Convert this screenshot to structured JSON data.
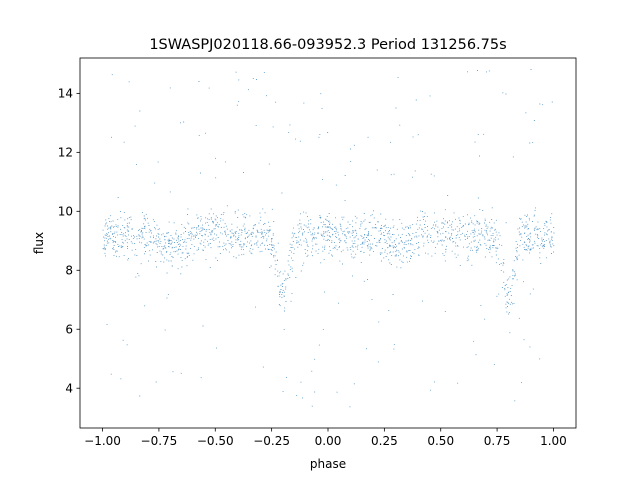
{
  "chart_data": {
    "type": "scatter",
    "title": "1SWASPJ020118.66-093952.3 Period 131256.75s",
    "xlabel": "phase",
    "ylabel": "flux",
    "xlim": [
      -1.1,
      1.1
    ],
    "ylim": [
      2.65,
      15.2
    ],
    "xticks": [
      -1.0,
      -0.75,
      -0.5,
      -0.25,
      0.0,
      0.25,
      0.5,
      0.75,
      1.0
    ],
    "xtick_labels": [
      "−1.00",
      "−0.75",
      "−0.50",
      "−0.25",
      "0.00",
      "0.25",
      "0.50",
      "0.75",
      "1.00"
    ],
    "yticks": [
      4,
      6,
      8,
      10,
      12,
      14
    ],
    "ytick_labels": [
      "4",
      "6",
      "8",
      "10",
      "12",
      "14"
    ],
    "grid": false,
    "legend": "none",
    "color": "#1f77b4",
    "series": [
      {
        "x_range": [
          -1.0,
          1.0
        ],
        "baseline_flux": 9.2,
        "core_band": [
          8.2,
          10.2
        ],
        "envelope": [
          3.2,
          14.9
        ],
        "dips": [
          {
            "phase": -0.2,
            "min_flux": 7.0
          },
          {
            "phase": 0.8,
            "min_flux": 7.0
          }
        ],
        "secondary_dips": [
          {
            "phase": 0.3,
            "min_flux": 8.3
          },
          {
            "phase": -0.7,
            "min_flux": 8.3
          }
        ]
      }
    ]
  }
}
